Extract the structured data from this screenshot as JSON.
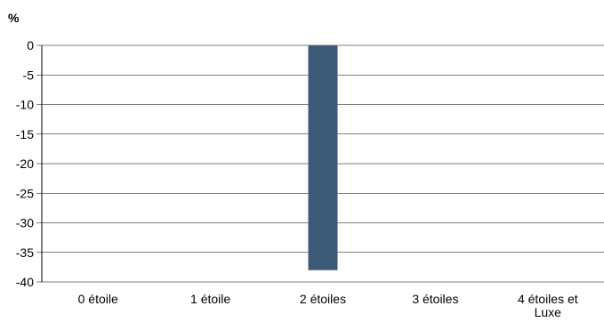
{
  "chart_data": {
    "type": "bar",
    "unit_label": "%",
    "categories": [
      "0 étoile",
      "1 étoile",
      "2 étoiles",
      "3 étoiles",
      [
        "4 étoiles et",
        "Luxe"
      ]
    ],
    "values": [
      0,
      0,
      -38,
      0,
      0
    ],
    "ylim": [
      -40,
      0
    ],
    "yticks": [
      0,
      -5,
      -10,
      -15,
      -20,
      -25,
      -30,
      -35,
      -40
    ],
    "grid": true,
    "colors": {
      "bar": "#3d5a78"
    }
  }
}
